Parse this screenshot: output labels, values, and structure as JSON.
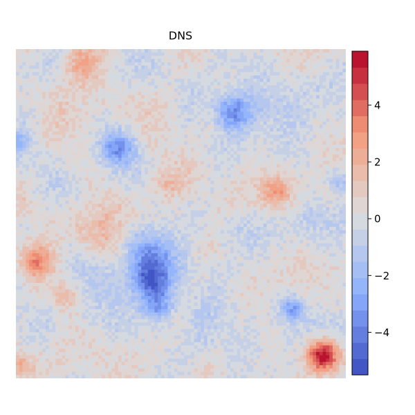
{
  "chart_data": {
    "type": "heatmap",
    "title": "DNS",
    "xlabel": "",
    "ylabel": "",
    "axes_visible": false,
    "colormap": "coolwarm",
    "colorbar": {
      "min": -5.5,
      "max": 5.9,
      "ticks": [
        -4,
        -2,
        0,
        2,
        4
      ],
      "tick_labels": [
        "−4",
        "−2",
        "0",
        "2",
        "4"
      ],
      "placement": "right",
      "levels": 20
    },
    "grid_size": [
      100,
      100
    ],
    "features": [
      {
        "kind": "vortex",
        "cx": 0.93,
        "cy": 0.93,
        "sigma": 0.035,
        "amp": 6.8
      },
      {
        "kind": "vortex",
        "cx": 0.41,
        "cy": 0.7,
        "sigma": 0.04,
        "amp": -4.2
      },
      {
        "kind": "vortex",
        "cx": 0.4,
        "cy": 0.62,
        "sigma": 0.05,
        "amp": -2.8
      },
      {
        "kind": "vortex",
        "cx": 0.43,
        "cy": 0.78,
        "sigma": 0.035,
        "amp": -3.0
      },
      {
        "kind": "vortex",
        "cx": 0.66,
        "cy": 0.19,
        "sigma": 0.04,
        "amp": -3.8
      },
      {
        "kind": "vortex",
        "cx": 0.31,
        "cy": 0.3,
        "sigma": 0.035,
        "amp": -3.2
      },
      {
        "kind": "vortex",
        "cx": 0.84,
        "cy": 0.79,
        "sigma": 0.025,
        "amp": -3.2
      },
      {
        "kind": "vortex",
        "cx": 0.06,
        "cy": 0.64,
        "sigma": 0.04,
        "amp": 3.2
      },
      {
        "kind": "vortex",
        "cx": 0.2,
        "cy": 0.04,
        "sigma": 0.045,
        "amp": 2.8
      },
      {
        "kind": "vortex",
        "cx": 0.79,
        "cy": 0.43,
        "sigma": 0.035,
        "amp": 2.6
      },
      {
        "kind": "vortex",
        "cx": 0.15,
        "cy": 0.75,
        "sigma": 0.03,
        "amp": 1.8
      },
      {
        "kind": "vortex",
        "cx": 0.45,
        "cy": 0.41,
        "sigma": 0.03,
        "amp": 1.5
      },
      {
        "kind": "vortex",
        "cx": 0.26,
        "cy": 0.55,
        "sigma": 0.05,
        "amp": 1.4
      },
      {
        "kind": "vortex",
        "cx": 0.98,
        "cy": 0.4,
        "sigma": 0.025,
        "amp": -2.2
      },
      {
        "kind": "vortex",
        "cx": 0.01,
        "cy": 0.28,
        "sigma": 0.02,
        "amp": -2.0
      },
      {
        "kind": "vortex",
        "cx": 0.02,
        "cy": 0.96,
        "sigma": 0.025,
        "amp": 1.8
      }
    ],
    "colors": {
      "low": "#3b4cc0",
      "mid": "#dddddd",
      "high": "#b40426",
      "background": "#ffffff"
    }
  }
}
